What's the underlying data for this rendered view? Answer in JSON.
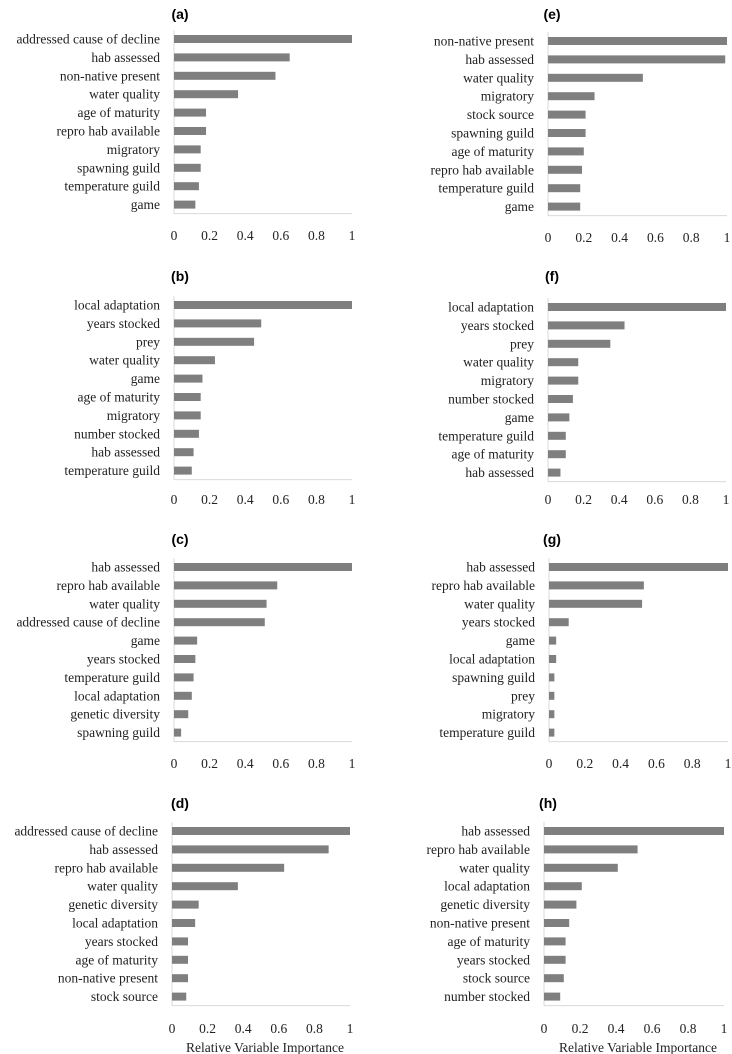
{
  "chart_data": [
    {
      "type": "bar",
      "orientation": "horizontal",
      "panel": "(a)",
      "categories": [
        "addressed cause of decline",
        "hab assessed",
        "non-native present",
        "water quality",
        "age of maturity",
        "repro hab available",
        "migratory",
        "spawning guild",
        "temperature guild",
        "game"
      ],
      "values": [
        1.0,
        0.65,
        0.57,
        0.36,
        0.18,
        0.18,
        0.15,
        0.15,
        0.14,
        0.12
      ],
      "xlim": [
        0,
        1
      ],
      "xticks": [
        "0",
        "0.2",
        "0.4",
        "0.6",
        "0.8",
        "1"
      ],
      "xlabel": ""
    },
    {
      "type": "bar",
      "orientation": "horizontal",
      "panel": "(b)",
      "categories": [
        "local adaptation",
        "years stocked",
        "prey",
        "water quality",
        "game",
        "age of maturity",
        "migratory",
        "number stocked",
        "hab assessed",
        "temperature guild"
      ],
      "values": [
        1.0,
        0.49,
        0.45,
        0.23,
        0.16,
        0.15,
        0.15,
        0.14,
        0.11,
        0.1
      ],
      "xlim": [
        0,
        1
      ],
      "xticks": [
        "0",
        "0.2",
        "0.4",
        "0.6",
        "0.8",
        "1"
      ],
      "xlabel": ""
    },
    {
      "type": "bar",
      "orientation": "horizontal",
      "panel": "(c)",
      "categories": [
        "hab assessed",
        "repro hab available",
        "water quality",
        "addressed cause of decline",
        "game",
        "years stocked",
        "temperature guild",
        "local adaptation",
        "genetic diversity",
        "spawning guild"
      ],
      "values": [
        1.0,
        0.58,
        0.52,
        0.51,
        0.13,
        0.12,
        0.11,
        0.1,
        0.08,
        0.04
      ],
      "xlim": [
        0,
        1
      ],
      "xticks": [
        "0",
        "0.2",
        "0.4",
        "0.6",
        "0.8",
        "1"
      ],
      "xlabel": ""
    },
    {
      "type": "bar",
      "orientation": "horizontal",
      "panel": "(d)",
      "categories": [
        "addressed cause of decline",
        "hab assessed",
        "repro hab available",
        "water quality",
        "genetic diversity",
        "local adaptation",
        "years stocked",
        "age of maturity",
        "non-native present",
        "stock source"
      ],
      "values": [
        1.0,
        0.88,
        0.63,
        0.37,
        0.15,
        0.13,
        0.09,
        0.09,
        0.09,
        0.08
      ],
      "xlim": [
        0,
        1
      ],
      "xticks": [
        "0",
        "0.2",
        "0.4",
        "0.6",
        "0.8",
        "1"
      ],
      "xlabel": "Relative Variable Importance"
    },
    {
      "type": "bar",
      "orientation": "horizontal",
      "panel": "(e)",
      "categories": [
        "non-native present",
        "hab assessed",
        "water quality",
        "migratory",
        "stock source",
        "spawning guild",
        "age of maturity",
        "repro hab available",
        "temperature guild",
        "game"
      ],
      "values": [
        1.0,
        0.99,
        0.53,
        0.26,
        0.21,
        0.21,
        0.2,
        0.19,
        0.18,
        0.18
      ],
      "xlim": [
        0,
        1
      ],
      "xticks": [
        "0",
        "0.2",
        "0.4",
        "0.6",
        "0.8",
        "1"
      ],
      "xlabel": ""
    },
    {
      "type": "bar",
      "orientation": "horizontal",
      "panel": "(f)",
      "categories": [
        "local adaptation",
        "years stocked",
        "prey",
        "water quality",
        "migratory",
        "number stocked",
        "game",
        "temperature guild",
        "age of maturity",
        "hab assessed"
      ],
      "values": [
        1.0,
        0.43,
        0.35,
        0.17,
        0.17,
        0.14,
        0.12,
        0.1,
        0.1,
        0.07
      ],
      "xlim": [
        0,
        1
      ],
      "xticks": [
        "0",
        "0.2",
        "0.4",
        "0.6",
        "0.8",
        "1"
      ],
      "xlabel": ""
    },
    {
      "type": "bar",
      "orientation": "horizontal",
      "panel": "(g)",
      "categories": [
        "hab assessed",
        "repro hab available",
        "water quality",
        "years stocked",
        "game",
        "local adaptation",
        "spawning guild",
        "prey",
        "migratory",
        "temperature guild"
      ],
      "values": [
        1.0,
        0.53,
        0.52,
        0.11,
        0.04,
        0.04,
        0.03,
        0.03,
        0.03,
        0.03
      ],
      "xlim": [
        0,
        1
      ],
      "xticks": [
        "0",
        "0.2",
        "0.4",
        "0.6",
        "0.8",
        "1"
      ],
      "xlabel": ""
    },
    {
      "type": "bar",
      "orientation": "horizontal",
      "panel": "(h)",
      "categories": [
        "hab assessed",
        "repro hab available",
        "water quality",
        "local adaptation",
        "genetic diversity",
        "non-native present",
        "age of maturity",
        "years stocked",
        "stock source",
        "number stocked"
      ],
      "values": [
        1.0,
        0.52,
        0.41,
        0.21,
        0.18,
        0.14,
        0.12,
        0.12,
        0.11,
        0.09
      ],
      "xlim": [
        0,
        1
      ],
      "xticks": [
        "0",
        "0.2",
        "0.4",
        "0.6",
        "0.8",
        "1"
      ],
      "xlabel": "Relative Variable Importance"
    }
  ]
}
